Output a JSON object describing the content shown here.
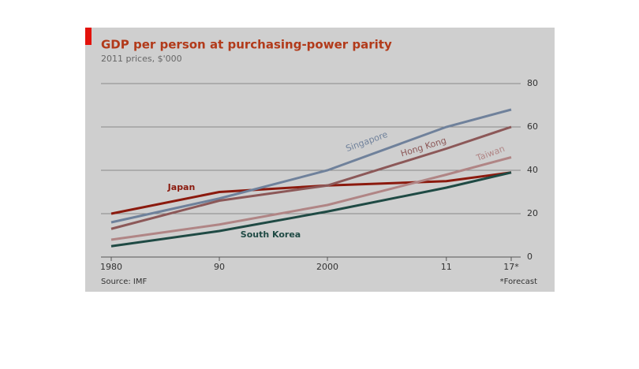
{
  "chart_data": {
    "type": "line",
    "title": "GDP per person at purchasing-power parity",
    "subtitle": "2011 prices, $'000",
    "source": "Source: IMF",
    "note": "*Forecast",
    "x": [
      1980,
      1990,
      2000,
      2011,
      2017
    ],
    "xlim": [
      1980,
      2017
    ],
    "xticks": [
      {
        "value": 1980,
        "label": "1980"
      },
      {
        "value": 1990,
        "label": "90"
      },
      {
        "value": 2000,
        "label": "2000"
      },
      {
        "value": 2011,
        "label": "11"
      },
      {
        "value": 2017,
        "label": "17*"
      }
    ],
    "ylim": [
      0,
      80
    ],
    "yticks": [
      0,
      20,
      40,
      60,
      80
    ],
    "grid": true,
    "series": [
      {
        "name": "Japan",
        "color": "#8b1a0e",
        "values": [
          20,
          30,
          33,
          35,
          39
        ]
      },
      {
        "name": "Singapore",
        "color": "#6f819b",
        "values": [
          16,
          27,
          40,
          60,
          68
        ]
      },
      {
        "name": "Hong Kong",
        "color": "#8c5858",
        "values": [
          13,
          26,
          33,
          50,
          60
        ]
      },
      {
        "name": "Taiwan",
        "color": "#b08585",
        "values": [
          8,
          15,
          24,
          38,
          46
        ]
      },
      {
        "name": "South Korea",
        "color": "#1f4a44",
        "values": [
          5,
          12,
          21,
          32,
          39
        ]
      }
    ]
  }
}
